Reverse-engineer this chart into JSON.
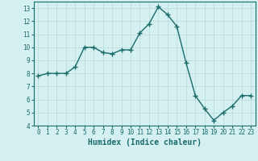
{
  "x": [
    0,
    1,
    2,
    3,
    4,
    5,
    6,
    7,
    8,
    9,
    10,
    11,
    12,
    13,
    14,
    15,
    16,
    17,
    18,
    19,
    20,
    21,
    22,
    23
  ],
  "y": [
    7.8,
    8.0,
    8.0,
    8.0,
    8.5,
    10.0,
    10.0,
    9.6,
    9.5,
    9.8,
    9.8,
    11.1,
    11.8,
    13.1,
    12.5,
    11.6,
    8.8,
    6.3,
    5.3,
    4.4,
    5.0,
    5.5,
    6.3,
    6.3
  ],
  "line_color": "#1a6b6b",
  "marker": "+",
  "marker_size": 3,
  "bg_color": "#d4f0f0",
  "grid_color": "#b8d8d8",
  "xlabel": "Humidex (Indice chaleur)",
  "xlim": [
    -0.5,
    23.5
  ],
  "ylim": [
    4,
    13.5
  ],
  "yticks": [
    4,
    5,
    6,
    7,
    8,
    9,
    10,
    11,
    12,
    13
  ],
  "xticks": [
    0,
    1,
    2,
    3,
    4,
    5,
    6,
    7,
    8,
    9,
    10,
    11,
    12,
    13,
    14,
    15,
    16,
    17,
    18,
    19,
    20,
    21,
    22,
    23
  ],
  "tick_fontsize": 5.5,
  "xlabel_fontsize": 7,
  "line_width": 1.0,
  "marker_size_pts": 4
}
